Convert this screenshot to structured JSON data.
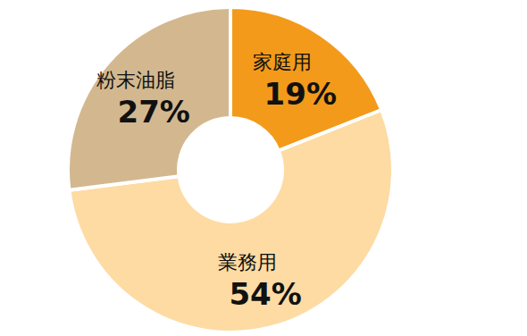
{
  "chart_data": {
    "type": "pie",
    "categories": [
      "家庭用",
      "業務用",
      "粉末油脂"
    ],
    "values": [
      19,
      54,
      27
    ],
    "value_labels": [
      "19%",
      "54%",
      "27%"
    ],
    "colors": [
      "#f39a1a",
      "#fddba3",
      "#d3b88f"
    ],
    "data_labels": true
  }
}
